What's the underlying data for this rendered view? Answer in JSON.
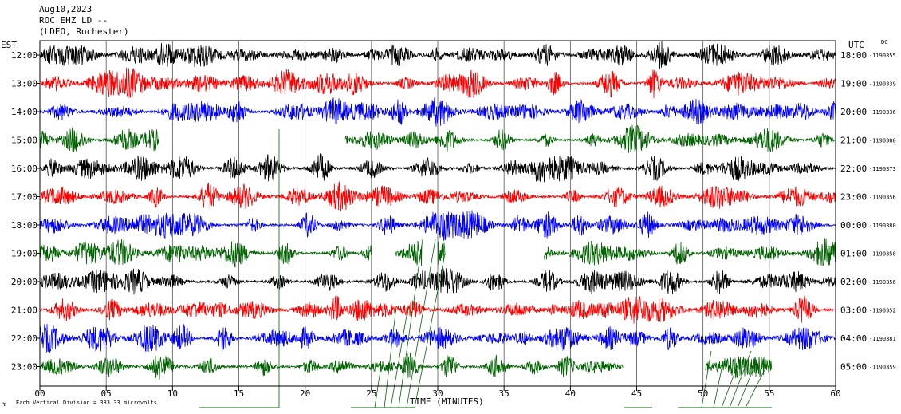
{
  "header": {
    "date": "Aug10,2023",
    "station": "ROC EHZ LD --",
    "network": "(LDEO, Rochester)"
  },
  "left_axis_title": "EST",
  "right_axis_title": "UTC",
  "dc_label": "DC",
  "footer": {
    "division_note": "Each Vertical Division =  333.33 microvolts"
  },
  "colors": {
    "black": "#000000",
    "red": "#ff0000",
    "blue": "#0000ff",
    "green": "#006400"
  },
  "chart_data": {
    "type": "line",
    "title": "",
    "xlabel": "TIME (MINUTES)",
    "xlim": [
      0,
      60
    ],
    "x_ticks": [
      "00",
      "05",
      "10",
      "15",
      "20",
      "25",
      "30",
      "35",
      "40",
      "45",
      "50",
      "55",
      "60"
    ],
    "rows": [
      {
        "est": "12:00",
        "utc": "18:00",
        "dc": "-1190355",
        "color": "black",
        "gaps": []
      },
      {
        "est": "13:00",
        "utc": "19:00",
        "dc": "-1190339",
        "color": "red",
        "gaps": []
      },
      {
        "est": "14:00",
        "utc": "20:00",
        "dc": "-1190336",
        "color": "blue",
        "gaps": []
      },
      {
        "est": "15:00",
        "utc": "21:00",
        "dc": "-1190380",
        "color": "green",
        "gaps": [
          [
            9.0,
            23.0
          ]
        ]
      },
      {
        "est": "16:00",
        "utc": "22:00",
        "dc": "-1190373",
        "color": "black",
        "gaps": []
      },
      {
        "est": "17:00",
        "utc": "23:00",
        "dc": "-1190356",
        "color": "red",
        "gaps": []
      },
      {
        "est": "18:00",
        "utc": "00:00",
        "dc": "-1190380",
        "color": "blue",
        "gaps": []
      },
      {
        "est": "19:00",
        "utc": "01:00",
        "dc": "-1190358",
        "color": "green",
        "gaps": [
          [
            25.0,
            26.8
          ],
          [
            28.8,
            30.0
          ],
          [
            30.6,
            38.0
          ]
        ]
      },
      {
        "est": "20:00",
        "utc": "02:00",
        "dc": "-1190356",
        "color": "black",
        "gaps": []
      },
      {
        "est": "21:00",
        "utc": "03:00",
        "dc": "-1190352",
        "color": "red",
        "gaps": []
      },
      {
        "est": "22:00",
        "utc": "04:00",
        "dc": "-1190381",
        "color": "blue",
        "gaps": []
      },
      {
        "est": "23:00",
        "utc": "05:00",
        "dc": "-1190359",
        "color": "green",
        "gaps": [
          [
            44.0,
            50.2
          ],
          [
            55.2,
            60.0
          ]
        ]
      }
    ]
  }
}
